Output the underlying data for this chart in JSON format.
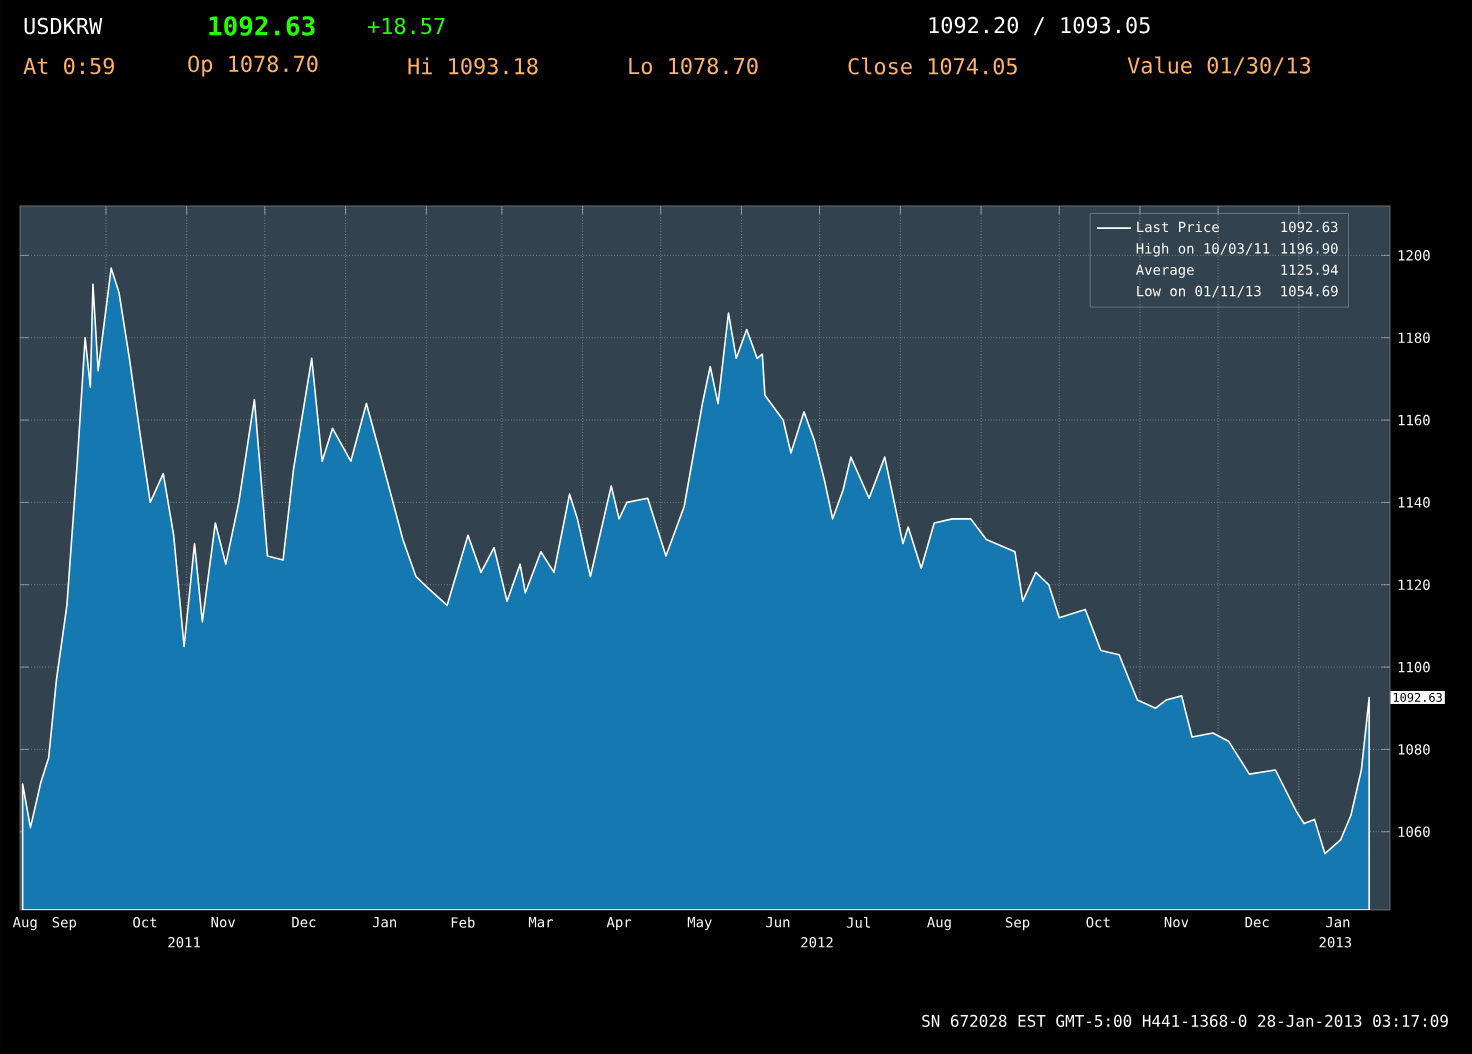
{
  "chart_data": {
    "type": "area",
    "title": "USDKRW",
    "x": [
      "2011-08-30",
      "2011-09-02",
      "2011-09-06",
      "2011-09-09",
      "2011-09-12",
      "2011-09-16",
      "2011-09-20",
      "2011-09-23",
      "2011-09-25",
      "2011-09-26",
      "2011-09-28",
      "2011-10-03",
      "2011-10-06",
      "2011-10-10",
      "2011-10-14",
      "2011-10-18",
      "2011-10-23",
      "2011-10-27",
      "2011-10-31",
      "2011-11-04",
      "2011-11-07",
      "2011-11-12",
      "2011-11-16",
      "2011-11-21",
      "2011-11-27",
      "2011-12-02",
      "2011-12-08",
      "2011-12-12",
      "2011-12-19",
      "2011-12-23",
      "2011-12-27",
      "2012-01-03",
      "2012-01-09",
      "2012-01-15",
      "2012-01-23",
      "2012-01-28",
      "2012-02-02",
      "2012-02-09",
      "2012-02-17",
      "2012-02-22",
      "2012-02-27",
      "2012-03-03",
      "2012-03-08",
      "2012-03-10",
      "2012-03-16",
      "2012-03-21",
      "2012-03-27",
      "2012-03-30",
      "2012-04-04",
      "2012-04-12",
      "2012-04-15",
      "2012-04-18",
      "2012-04-26",
      "2012-05-03",
      "2012-05-10",
      "2012-05-17",
      "2012-05-20",
      "2012-05-23",
      "2012-05-27",
      "2012-05-30",
      "2012-06-03",
      "2012-06-07",
      "2012-06-09",
      "2012-06-10",
      "2012-06-17",
      "2012-06-20",
      "2012-06-25",
      "2012-06-29",
      "2012-07-03",
      "2012-07-06",
      "2012-07-10",
      "2012-07-13",
      "2012-07-20",
      "2012-07-26",
      "2012-08-02",
      "2012-08-04",
      "2012-08-09",
      "2012-08-14",
      "2012-08-21",
      "2012-08-28",
      "2012-09-03",
      "2012-09-14",
      "2012-09-17",
      "2012-09-22",
      "2012-09-27",
      "2012-10-01",
      "2012-10-11",
      "2012-10-17",
      "2012-10-24",
      "2012-10-31",
      "2012-11-07",
      "2012-11-11",
      "2012-11-17",
      "2012-11-21",
      "2012-11-29",
      "2012-12-05",
      "2012-12-13",
      "2012-12-23",
      "2012-12-31",
      "2013-01-03",
      "2013-01-07",
      "2013-01-11",
      "2013-01-17",
      "2013-01-21",
      "2013-01-25",
      "2013-01-28"
    ],
    "series": [
      {
        "name": "Last Price",
        "color": "#1678b0",
        "values": [
          1071.6,
          1061,
          1072,
          1078,
          1097,
          1115,
          1150,
          1180,
          1168,
          1193,
          1172,
          1196.9,
          1191,
          1175,
          1157,
          1140,
          1147,
          1132,
          1105,
          1130,
          1111,
          1135,
          1125,
          1140,
          1165,
          1127,
          1126,
          1148,
          1175,
          1150,
          1158,
          1150,
          1164,
          1150,
          1131,
          1122,
          1119,
          1115,
          1132,
          1123,
          1129,
          1116,
          1125,
          1118,
          1128,
          1123,
          1142,
          1136,
          1122,
          1144,
          1136,
          1140,
          1141,
          1127,
          1139,
          1164,
          1173,
          1164,
          1186,
          1175,
          1182,
          1175,
          1176,
          1166,
          1160,
          1152,
          1162,
          1155,
          1145,
          1136,
          1143,
          1151,
          1141,
          1151,
          1130,
          1134,
          1124,
          1135,
          1136,
          1136,
          1131,
          1128,
          1116,
          1123,
          1120,
          1112,
          1114,
          1104,
          1103,
          1092,
          1090,
          1092,
          1093,
          1083,
          1084,
          1082,
          1074,
          1075,
          1065,
          1062,
          1063,
          1054.7,
          1058,
          1064,
          1075,
          1092.6
        ]
      }
    ],
    "xlim": [
      "2011-08-29",
      "2013-02-05"
    ],
    "xticks": [
      {
        "value": "2011-08-31",
        "label": "Aug"
      },
      {
        "value": "2011-09-15",
        "label": "Sep"
      },
      {
        "value": "2011-10-01",
        "label": null
      },
      {
        "value": "2011-10-16",
        "label": "Oct"
      },
      {
        "value": "2011-11-01",
        "label": null
      },
      {
        "value": "2011-11-15",
        "label": "Nov"
      },
      {
        "value": "2011-12-01",
        "label": null
      },
      {
        "value": "2011-12-16",
        "label": "Dec"
      },
      {
        "value": "2012-01-01",
        "label": null
      },
      {
        "value": "2012-01-16",
        "label": "Jan"
      },
      {
        "value": "2012-02-01",
        "label": null
      },
      {
        "value": "2012-02-15",
        "label": "Feb"
      },
      {
        "value": "2012-03-01",
        "label": null
      },
      {
        "value": "2012-03-16",
        "label": "Mar"
      },
      {
        "value": "2012-04-01",
        "label": null
      },
      {
        "value": "2012-04-15",
        "label": "Apr"
      },
      {
        "value": "2012-05-01",
        "label": null
      },
      {
        "value": "2012-05-16",
        "label": "May"
      },
      {
        "value": "2012-06-01",
        "label": null
      },
      {
        "value": "2012-06-15",
        "label": "Jun"
      },
      {
        "value": "2012-07-01",
        "label": null
      },
      {
        "value": "2012-07-16",
        "label": "Jul"
      },
      {
        "value": "2012-08-01",
        "label": null
      },
      {
        "value": "2012-08-16",
        "label": "Aug"
      },
      {
        "value": "2012-09-01",
        "label": null
      },
      {
        "value": "2012-09-15",
        "label": "Sep"
      },
      {
        "value": "2012-10-01",
        "label": null
      },
      {
        "value": "2012-10-16",
        "label": "Oct"
      },
      {
        "value": "2012-11-01",
        "label": null
      },
      {
        "value": "2012-11-15",
        "label": "Nov"
      },
      {
        "value": "2012-12-01",
        "label": null
      },
      {
        "value": "2012-12-16",
        "label": "Dec"
      },
      {
        "value": "2013-01-01",
        "label": null
      },
      {
        "value": "2013-01-16",
        "label": "Jan"
      }
    ],
    "ylim": [
      1041,
      1212
    ],
    "yticks": [
      1060,
      1080,
      1100,
      1120,
      1140,
      1160,
      1180,
      1200
    ],
    "grid": true,
    "legend": "top right",
    "annotations": [
      "1092.63",
      "+18.57",
      "At 0:59",
      "Op 1078.70",
      "Hi 1093.18",
      "Lo 1078.70",
      "Close 1074.05",
      "Value 01/30/13",
      "1092.20 / 1093.05",
      "1092.63",
      "High on 10/03/11",
      "1196.90",
      "Average",
      "1125.94",
      "Low on 01/11/13",
      "1054.69",
      {
        "text": "1092.63",
        "x": "2013-01-28",
        "y": 1092.63
      },
      {
        "text": "2011",
        "x": "2011-10-31",
        "y": 1041
      },
      {
        "text": "2012",
        "x": "2012-06-30",
        "y": 1041
      },
      {
        "text": "2013",
        "x": "2013-01-15",
        "y": 1041
      },
      "SN 672028 EST  GMT-5:00 H441-1368-0 28-Jan-2013 03:17:09"
    ]
  }
}
